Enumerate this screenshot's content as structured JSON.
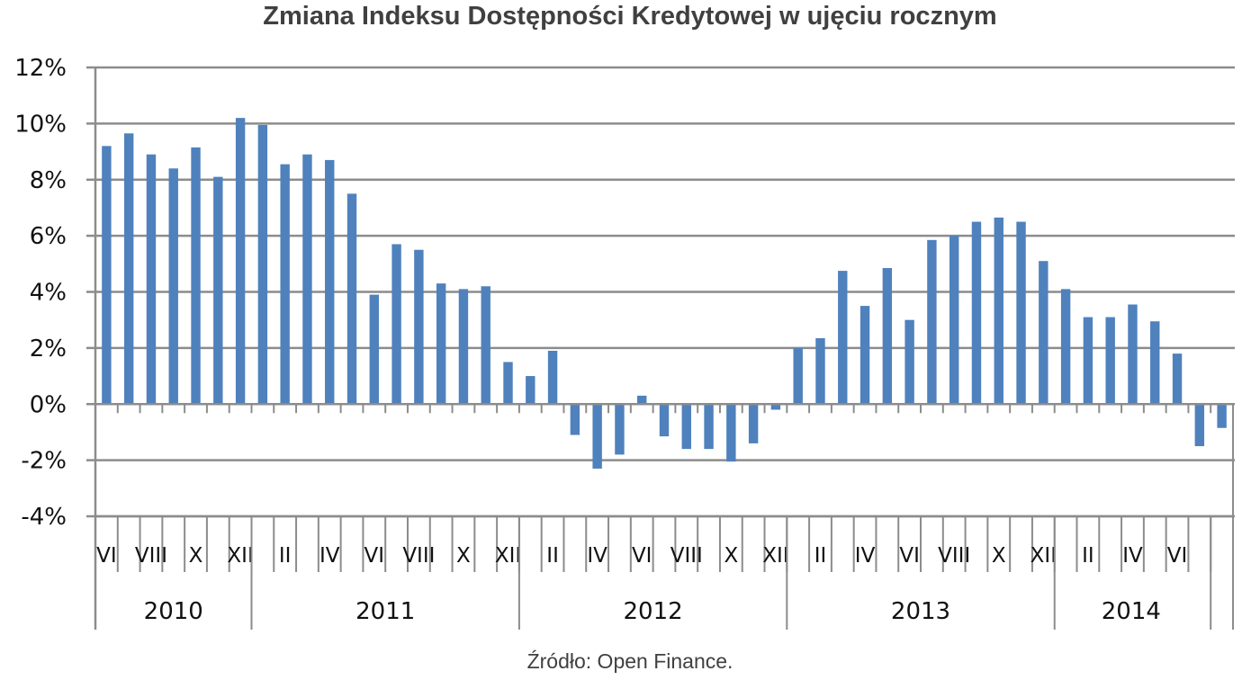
{
  "title": "Zmiana Indeksu Dostępności Kredytowej w ujęciu rocznym",
  "source": "Źródło: Open Finance.",
  "colors": {
    "bar": "#4F81BD",
    "grid": "#8C8C8C",
    "axis": "#8C8C8C",
    "text": "#111111",
    "title": "#404040"
  },
  "chart_data": {
    "type": "bar",
    "title": "Zmiana Indeksu Dostępności Kredytowej w ujęciu rocznym",
    "xlabel": "",
    "ylabel": "",
    "ylim": [
      -4,
      12
    ],
    "yticks": [
      "12%",
      "10%",
      "8%",
      "6%",
      "4%",
      "2%",
      "0%",
      "-2%",
      "-4%"
    ],
    "grid": true,
    "legend": null,
    "unit": "%",
    "categories": [
      "VI 2010",
      "VII 2010",
      "VIII 2010",
      "IX 2010",
      "X 2010",
      "XI 2010",
      "XII 2010",
      "I 2011",
      "II 2011",
      "III 2011",
      "IV 2011",
      "V 2011",
      "VI 2011",
      "VII 2011",
      "VIII 2011",
      "IX 2011",
      "X 2011",
      "XI 2011",
      "XII 2011",
      "I 2012",
      "II 2012",
      "III 2012",
      "IV 2012",
      "V 2012",
      "VI 2012",
      "VII 2012",
      "VIII 2012",
      "IX 2012",
      "X 2012",
      "XI 2012",
      "XII 2012",
      "I 2013",
      "II 2013",
      "III 2013",
      "IV 2013",
      "V 2013",
      "VI 2013",
      "VII 2013",
      "VIII 2013",
      "IX 2013",
      "X 2013",
      "XI 2013",
      "XII 2013",
      "I 2014",
      "II 2014",
      "III 2014",
      "IV 2014",
      "V 2014",
      "VI 2014",
      "VII 2014",
      "VIII 2014"
    ],
    "values": [
      9.2,
      9.65,
      8.9,
      8.4,
      9.15,
      8.1,
      10.2,
      9.95,
      8.55,
      8.9,
      8.7,
      7.5,
      3.9,
      5.7,
      5.5,
      4.3,
      4.1,
      4.2,
      1.5,
      1.0,
      1.9,
      -1.1,
      -2.3,
      -1.8,
      0.3,
      -1.15,
      -1.6,
      -1.6,
      -2.05,
      -1.4,
      -0.2,
      2.0,
      2.35,
      4.75,
      3.5,
      4.85,
      3.0,
      5.85,
      6.0,
      6.5,
      6.65,
      6.5,
      5.1,
      4.1,
      3.1,
      3.1,
      3.55,
      2.95,
      1.8,
      -1.5,
      -0.85
    ],
    "month_labels": [
      "VI",
      "",
      "VIII",
      "",
      "X",
      "",
      "XII",
      "",
      "II",
      "",
      "IV",
      "",
      "VI",
      "",
      "VIII",
      "",
      "X",
      "",
      "XII",
      "",
      "II",
      "",
      "IV",
      "",
      "VI",
      "",
      "VIII",
      "",
      "X",
      "",
      "XII",
      "",
      "II",
      "",
      "IV",
      "",
      "VI",
      "",
      "VIII",
      "",
      "X",
      "",
      "XII",
      "",
      "II",
      "",
      "IV",
      "",
      "VI",
      "",
      ""
    ],
    "years": [
      {
        "label": "2010",
        "start": 0,
        "count": 7
      },
      {
        "label": "2011",
        "start": 7,
        "count": 12
      },
      {
        "label": "2012",
        "start": 19,
        "count": 12
      },
      {
        "label": "2013",
        "start": 31,
        "count": 12
      },
      {
        "label": "2014",
        "start": 43,
        "count": 8
      }
    ]
  }
}
